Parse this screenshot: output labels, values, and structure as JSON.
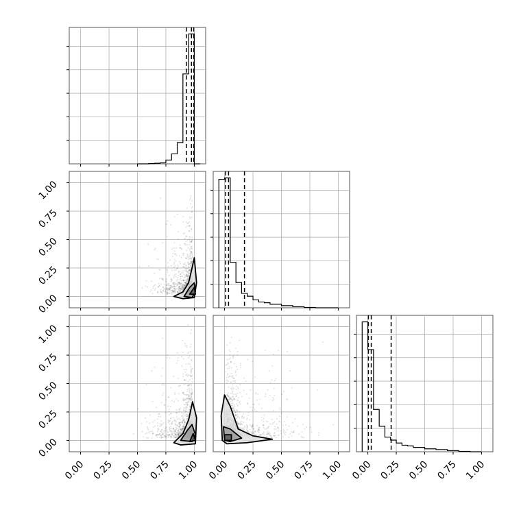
{
  "chart_data": {
    "type": "corner",
    "tick_labels": [
      "0.00",
      "0.25",
      "0.50",
      "0.75",
      "1.00"
    ],
    "grid": true,
    "axis_range": [
      -0.1,
      1.1
    ],
    "panels": [
      {
        "kind": "histogram",
        "row": 0,
        "col": 0,
        "bin_edges": [
          0.5,
          0.55,
          0.6,
          0.65,
          0.7,
          0.75,
          0.8,
          0.85,
          0.9,
          0.95,
          1.0,
          1.05
        ],
        "counts": [
          0,
          0,
          0.2,
          0.5,
          0.8,
          3,
          8,
          17,
          72,
          104,
          0
        ],
        "quantiles": [
          0.93,
          0.975,
          0.995
        ]
      },
      {
        "kind": "histogram",
        "row": 1,
        "col": 1,
        "bin_edges": [
          -0.05,
          0.0,
          0.05,
          0.1,
          0.15,
          0.2,
          0.25,
          0.3,
          0.35,
          0.4,
          0.5,
          0.6,
          0.7,
          0.8,
          0.9,
          1.0
        ],
        "counts": [
          178,
          180,
          63,
          35,
          20,
          16,
          11,
          8,
          7,
          5,
          3,
          1.5,
          0.5,
          0,
          0
        ],
        "quantiles": [
          0.01,
          0.035,
          0.175
        ]
      },
      {
        "kind": "histogram",
        "row": 2,
        "col": 2,
        "bin_edges": [
          -0.05,
          0.0,
          0.05,
          0.1,
          0.15,
          0.2,
          0.25,
          0.3,
          0.35,
          0.4,
          0.5,
          0.6,
          0.7,
          0.8,
          0.9,
          1.0
        ],
        "counts": [
          178,
          140,
          58,
          35,
          20,
          16,
          12,
          9,
          8,
          6,
          4,
          3,
          1.5,
          0.5,
          0
        ],
        "quantiles": [
          0.005,
          0.03,
          0.205
        ]
      },
      {
        "kind": "scatter",
        "row": 1,
        "col": 0,
        "cloud": {
          "x_center": 0.985,
          "x_spread": 0.16,
          "y_center": 0.04,
          "y_spread": 0.22,
          "n": 900
        },
        "contours": [
          [
            [
              0.82,
              0.0
            ],
            [
              0.9,
              0.04
            ],
            [
              0.95,
              0.12
            ],
            [
              0.985,
              0.27
            ],
            [
              1.0,
              0.34
            ],
            [
              1.02,
              0.12
            ],
            [
              1.0,
              -0.01
            ],
            [
              0.9,
              -0.02
            ]
          ],
          [
            [
              0.91,
              0.0
            ],
            [
              0.96,
              0.08
            ],
            [
              1.0,
              0.12
            ],
            [
              1.01,
              0.04
            ],
            [
              0.98,
              -0.01
            ]
          ],
          [
            [
              0.96,
              0.02
            ],
            [
              1.0,
              0.08
            ],
            [
              1.01,
              0.02
            ]
          ]
        ]
      },
      {
        "kind": "scatter",
        "row": 2,
        "col": 0,
        "cloud": {
          "x_center": 0.985,
          "x_spread": 0.18,
          "y_center": 0.04,
          "y_spread": 0.25,
          "n": 1000
        },
        "contours": [
          [
            [
              0.82,
              -0.02
            ],
            [
              0.9,
              0.06
            ],
            [
              0.95,
              0.18
            ],
            [
              0.985,
              0.34
            ],
            [
              1.02,
              0.2
            ],
            [
              1.01,
              -0.03
            ],
            [
              0.88,
              -0.04
            ]
          ],
          [
            [
              0.88,
              0.0
            ],
            [
              0.94,
              0.09
            ],
            [
              0.98,
              0.14
            ],
            [
              1.01,
              0.05
            ],
            [
              0.98,
              -0.01
            ]
          ],
          [
            [
              0.96,
              -0.01
            ],
            [
              0.99,
              0.06
            ],
            [
              1.01,
              0.0
            ]
          ]
        ]
      },
      {
        "kind": "scatter",
        "row": 2,
        "col": 1,
        "cloud": {
          "x_center": 0.03,
          "x_spread": 0.22,
          "y_center": 0.04,
          "y_spread": 0.25,
          "n": 1100
        },
        "contours": [
          [
            [
              -0.02,
              0.0
            ],
            [
              -0.03,
              0.22
            ],
            [
              0.0,
              0.4
            ],
            [
              0.05,
              0.3
            ],
            [
              0.12,
              0.1
            ],
            [
              0.25,
              0.04
            ],
            [
              0.42,
              0.01
            ],
            [
              0.2,
              -0.02
            ],
            [
              0.02,
              -0.03
            ]
          ],
          [
            [
              0.0,
              0.0
            ],
            [
              -0.01,
              0.12
            ],
            [
              0.05,
              0.1
            ],
            [
              0.15,
              0.02
            ],
            [
              0.05,
              -0.01
            ]
          ],
          [
            [
              0.0,
              0.0
            ],
            [
              0.0,
              0.05
            ],
            [
              0.06,
              0.05
            ],
            [
              0.06,
              0.0
            ]
          ]
        ]
      }
    ]
  }
}
